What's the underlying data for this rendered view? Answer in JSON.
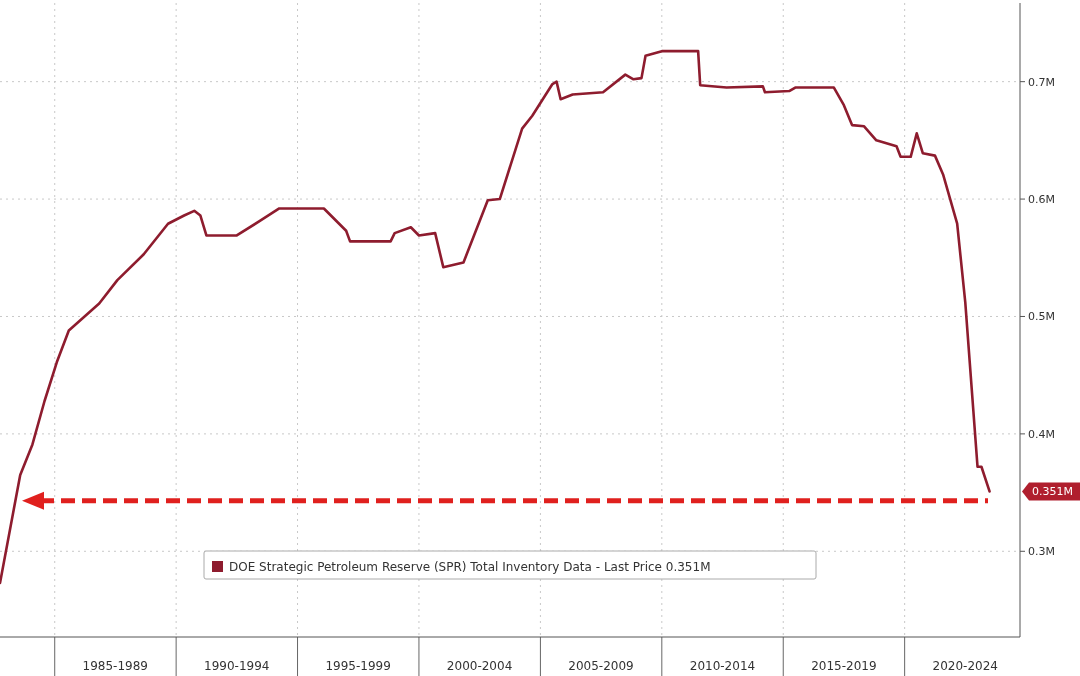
{
  "chart_data": {
    "type": "line",
    "x": [
      "1982-10",
      "1983-08",
      "1984-02",
      "1984-08",
      "1985-02",
      "1985-08",
      "1986-11",
      "1987-08",
      "1988-09",
      "1989-09",
      "1990-05",
      "1990-10",
      "1991-01",
      "1991-04",
      "1992-07",
      "1993-07",
      "1994-04",
      "1996-02",
      "1997-01",
      "1997-03",
      "1998-11",
      "1999-01",
      "1999-09",
      "2000-01",
      "2000-09",
      "2001-01",
      "2001-11",
      "2002-11",
      "2003-05",
      "2004-04",
      "2004-09",
      "2005-07",
      "2005-09",
      "2005-11",
      "2006-05",
      "2007-08",
      "2008-07",
      "2008-11",
      "2009-03",
      "2009-05",
      "2010-01",
      "2011-07",
      "2011-08",
      "2012-09",
      "2014-03",
      "2014-04",
      "2015-04",
      "2015-07",
      "2017-02",
      "2017-07",
      "2017-11",
      "2018-05",
      "2018-11",
      "2019-09",
      "2019-11",
      "2020-04",
      "2020-07",
      "2020-10",
      "2021-04",
      "2021-08",
      "2022-03",
      "2022-07",
      "2023-01",
      "2023-03",
      "2023-07"
    ],
    "series": [
      {
        "name": "DOE Strategic Petroleum Reserve (SPR) Total Inventory Data - Last Price 0.351M",
        "color": "#8e1c2e",
        "values": [
          0.273,
          0.365,
          0.391,
          0.428,
          0.461,
          0.488,
          0.511,
          0.531,
          0.553,
          0.579,
          0.586,
          0.59,
          0.586,
          0.569,
          0.569,
          0.582,
          0.592,
          0.592,
          0.573,
          0.564,
          0.564,
          0.571,
          0.576,
          0.569,
          0.571,
          0.542,
          0.546,
          0.599,
          0.6,
          0.66,
          0.671,
          0.698,
          0.7,
          0.685,
          0.689,
          0.691,
          0.706,
          0.702,
          0.703,
          0.722,
          0.726,
          0.726,
          0.697,
          0.695,
          0.696,
          0.691,
          0.692,
          0.695,
          0.695,
          0.68,
          0.663,
          0.662,
          0.65,
          0.645,
          0.636,
          0.636,
          0.656,
          0.639,
          0.637,
          0.621,
          0.579,
          0.512,
          0.372,
          0.372,
          0.351
        ]
      }
    ],
    "annotations": [
      "0.351M"
    ],
    "xlim": [
      "1982-10",
      "2024-10"
    ],
    "xticks": [
      {
        "value": "1985-01",
        "label": null
      },
      {
        "value": "1987-07",
        "label": "1985-1989"
      },
      {
        "value": "1990-01",
        "label": null
      },
      {
        "value": "1992-07",
        "label": "1990-1994"
      },
      {
        "value": "1995-01",
        "label": null
      },
      {
        "value": "1997-07",
        "label": "1995-1999"
      },
      {
        "value": "2000-01",
        "label": null
      },
      {
        "value": "2002-07",
        "label": "2000-2004"
      },
      {
        "value": "2005-01",
        "label": null
      },
      {
        "value": "2007-07",
        "label": "2005-2009"
      },
      {
        "value": "2010-01",
        "label": null
      },
      {
        "value": "2012-07",
        "label": "2010-2014"
      },
      {
        "value": "2015-01",
        "label": null
      },
      {
        "value": "2017-07",
        "label": "2015-2019"
      },
      {
        "value": "2020-01",
        "label": null
      },
      {
        "value": "2022-07",
        "label": "2020-2024"
      }
    ],
    "ylim": [
      0.227,
      0.767
    ],
    "yticks": [
      {
        "value": 0.3,
        "label": "0.3M"
      },
      {
        "value": 0.4,
        "label": "0.4M"
      },
      {
        "value": 0.5,
        "label": "0.5M"
      },
      {
        "value": 0.6,
        "label": "0.6M"
      },
      {
        "value": 0.7,
        "label": "0.7M"
      }
    ],
    "grid": true,
    "legend": "bottom",
    "ref_lines": [
      {
        "axis": "y",
        "value": 0.343,
        "color": "#e0201e",
        "line_style": "dashed"
      }
    ]
  }
}
